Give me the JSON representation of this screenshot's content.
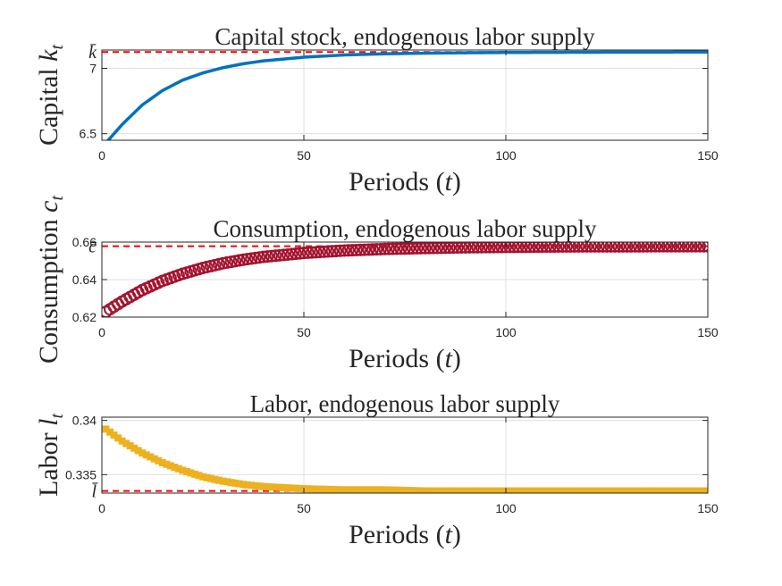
{
  "chart_data": [
    {
      "type": "line",
      "title": "Capital stock, endogenous labor supply",
      "xlabel": "Periods (t)",
      "ylabel": "Capital k_t",
      "xlim": [
        0,
        150
      ],
      "ylim": [
        6.45,
        7.14
      ],
      "xticks": [
        "0",
        "50",
        "100",
        "150"
      ],
      "yticks": [
        "6.5",
        "7"
      ],
      "steady_state_label": "k̄",
      "steady_state": 7.125,
      "grid": true,
      "series": [
        {
          "color": "#0072BD",
          "marker": "none",
          "x": [
            1,
            5,
            10,
            15,
            20,
            25,
            30,
            35,
            40,
            50,
            60,
            70,
            80,
            90,
            100,
            110,
            120,
            130,
            140,
            150
          ],
          "y": [
            6.43,
            6.57,
            6.72,
            6.83,
            6.91,
            6.965,
            7.005,
            7.035,
            7.057,
            7.085,
            7.102,
            7.111,
            7.116,
            7.119,
            7.121,
            7.122,
            7.123,
            7.124,
            7.124,
            7.125
          ]
        }
      ]
    },
    {
      "type": "line",
      "title": "Consumption, endogenous labor supply",
      "xlabel": "Periods (t)",
      "ylabel": "Consumption c_t",
      "xlim": [
        0,
        150
      ],
      "ylim": [
        0.62,
        0.66
      ],
      "xticks": [
        "0",
        "50",
        "100",
        "150"
      ],
      "yticks": [
        "0.62",
        "0.64",
        "0.66"
      ],
      "steady_state_label": "c̄",
      "steady_state": 0.6578,
      "grid": true,
      "series": [
        {
          "color": "#A2142F",
          "marker": "circle",
          "x": [
            1,
            5,
            10,
            15,
            20,
            25,
            30,
            35,
            40,
            50,
            60,
            70,
            80,
            90,
            100,
            110,
            120,
            130,
            140,
            150
          ],
          "y": [
            0.6228,
            0.6283,
            0.6344,
            0.6393,
            0.6431,
            0.6462,
            0.6487,
            0.6506,
            0.6521,
            0.6542,
            0.6555,
            0.6563,
            0.6568,
            0.6572,
            0.6574,
            0.6576,
            0.6577,
            0.6577,
            0.6578,
            0.6578
          ]
        }
      ]
    },
    {
      "type": "line",
      "title": "Labor, endogenous labor supply",
      "xlabel": "Periods (t)",
      "ylabel": "Labor l_t",
      "xlim": [
        0,
        150
      ],
      "ylim": [
        0.3333,
        0.3403
      ],
      "xticks": [
        "0",
        "50",
        "100",
        "150"
      ],
      "yticks": [
        "0.335",
        "0.34"
      ],
      "steady_state_label": "l̄",
      "steady_state": 0.3335,
      "grid": true,
      "series": [
        {
          "color": "#EDB120",
          "marker": "square",
          "x": [
            1,
            5,
            10,
            15,
            20,
            25,
            30,
            35,
            40,
            50,
            60,
            70,
            80,
            90,
            100,
            110,
            120,
            130,
            140,
            150
          ],
          "y": [
            0.3392,
            0.3381,
            0.337,
            0.3361,
            0.3354,
            0.3348,
            0.3344,
            0.3341,
            0.3339,
            0.3337,
            0.3336,
            0.3336,
            0.3335,
            0.3335,
            0.3335,
            0.3335,
            0.3335,
            0.3335,
            0.3335,
            0.3335
          ]
        }
      ]
    }
  ]
}
